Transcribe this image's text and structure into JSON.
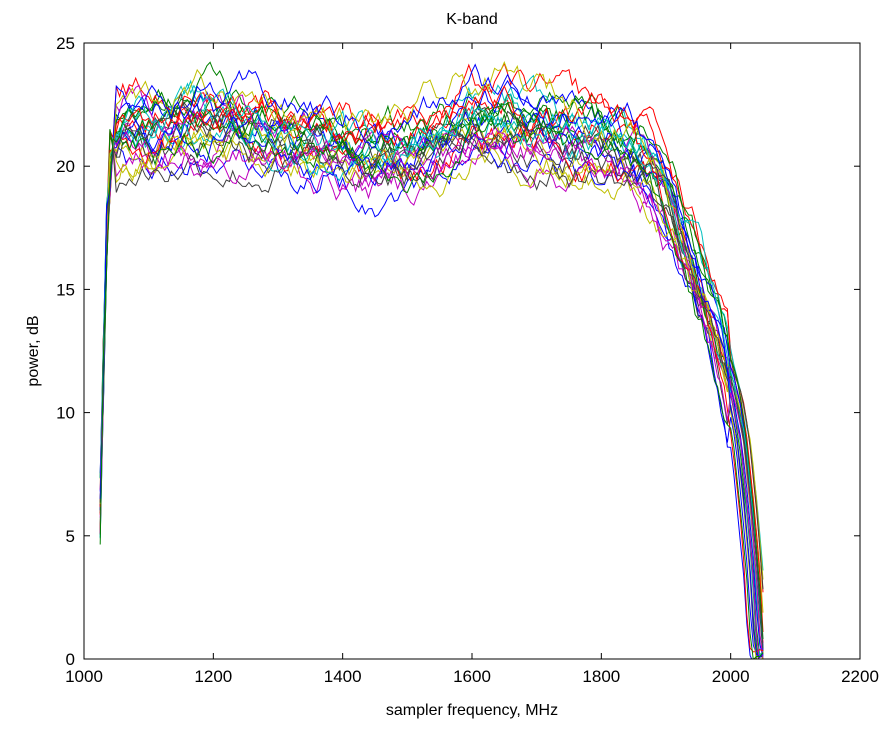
{
  "chart_data": {
    "type": "line",
    "title": "K-band",
    "xlabel": "sampler frequency, MHz",
    "ylabel": "power, dB",
    "xlim": [
      1000,
      2200
    ],
    "ylim": [
      0,
      25
    ],
    "xticks": [
      1000,
      1200,
      1400,
      1600,
      1800,
      2000,
      2200
    ],
    "yticks": [
      0,
      5,
      10,
      15,
      20,
      25
    ],
    "grid": false,
    "legend": "none",
    "series_count": 30,
    "x_start": 1025,
    "x_end": 2050,
    "x_step": 5,
    "palette": [
      "#0000ff",
      "#008000",
      "#ff0000",
      "#00bfbf",
      "#bf00bf",
      "#bfbf00",
      "#404040"
    ],
    "profile": {
      "x": [
        1025,
        1030,
        1035,
        1040,
        1045,
        1060,
        1100,
        1150,
        1200,
        1250,
        1300,
        1350,
        1400,
        1450,
        1500,
        1550,
        1600,
        1650,
        1700,
        1750,
        1800,
        1850,
        1875,
        1900,
        1925,
        1950,
        1975,
        2000,
        2015,
        2025,
        2035,
        2040,
        2045,
        2050
      ],
      "y": [
        5.5,
        11.0,
        16.5,
        19.5,
        20.8,
        21.2,
        21.3,
        21.6,
        21.7,
        21.4,
        21.3,
        21.0,
        20.7,
        20.4,
        20.6,
        21.0,
        21.8,
        21.9,
        21.6,
        21.2,
        20.9,
        20.5,
        19.9,
        18.6,
        17.0,
        15.2,
        13.3,
        11.0,
        9.0,
        6.5,
        3.5,
        1.2,
        0.0,
        0.0
      ]
    }
  }
}
